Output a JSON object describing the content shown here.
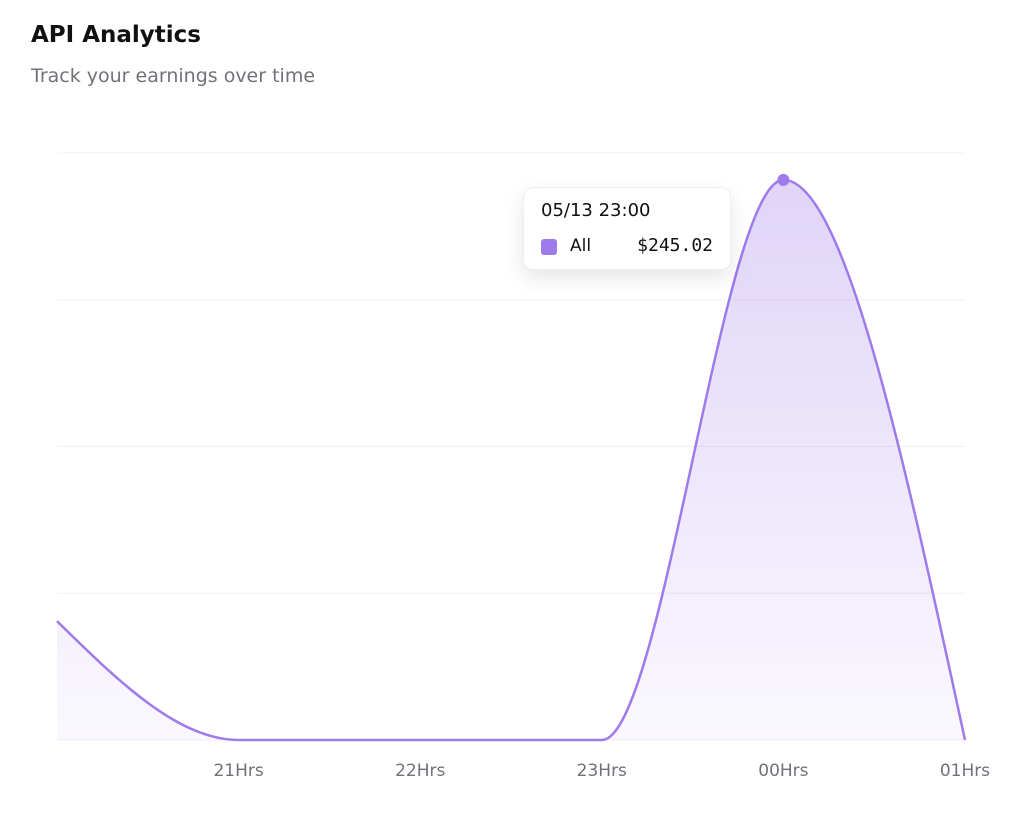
{
  "chart_data": {
    "type": "area",
    "title": "API Analytics",
    "subtitle": "Track your earnings over time",
    "categories": [
      null,
      "21Hrs",
      "22Hrs",
      "23Hrs",
      "00Hrs",
      "01Hrs"
    ],
    "series": [
      {
        "name": "All",
        "color": "#9f7aea",
        "values": [
          52,
          0,
          0,
          0,
          245.02,
          0
        ],
        "value_labels": [
          null,
          null,
          null,
          null,
          "$245.02",
          null
        ]
      }
    ],
    "tooltip_title": "05/13 23:00",
    "ylim": [
      0,
      256.8
    ],
    "grid": true
  }
}
